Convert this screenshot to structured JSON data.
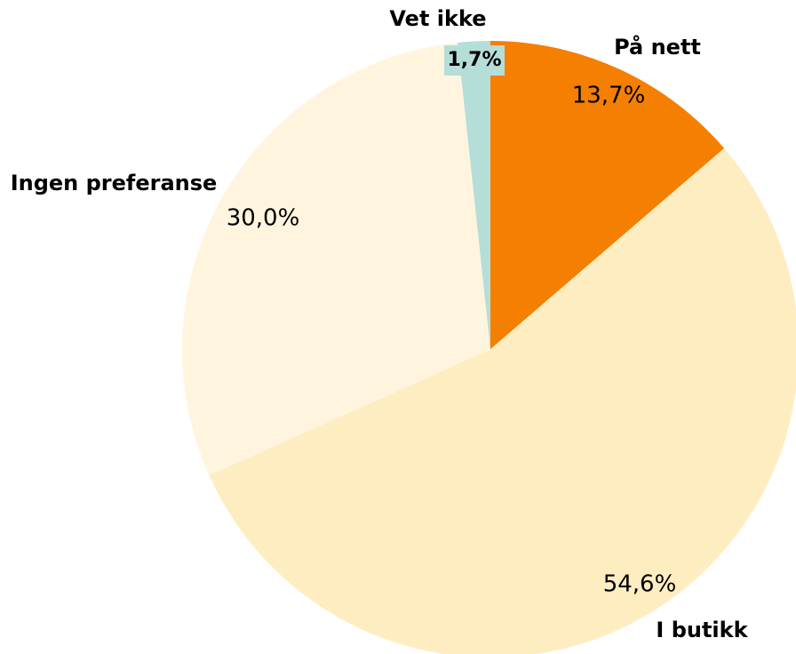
{
  "chart_data": {
    "type": "pie",
    "categories": [
      "På nett",
      "I butikk",
      "Ingen preferanse",
      "Vet ikke"
    ],
    "values": [
      13.7,
      54.6,
      30.0,
      1.7
    ],
    "value_labels": [
      "13,7%",
      "54,6%",
      "30,0%",
      "1,7%"
    ],
    "colors": [
      "#f57f00",
      "#ffedc2",
      "#fff5df",
      "#b5ded8"
    ]
  }
}
